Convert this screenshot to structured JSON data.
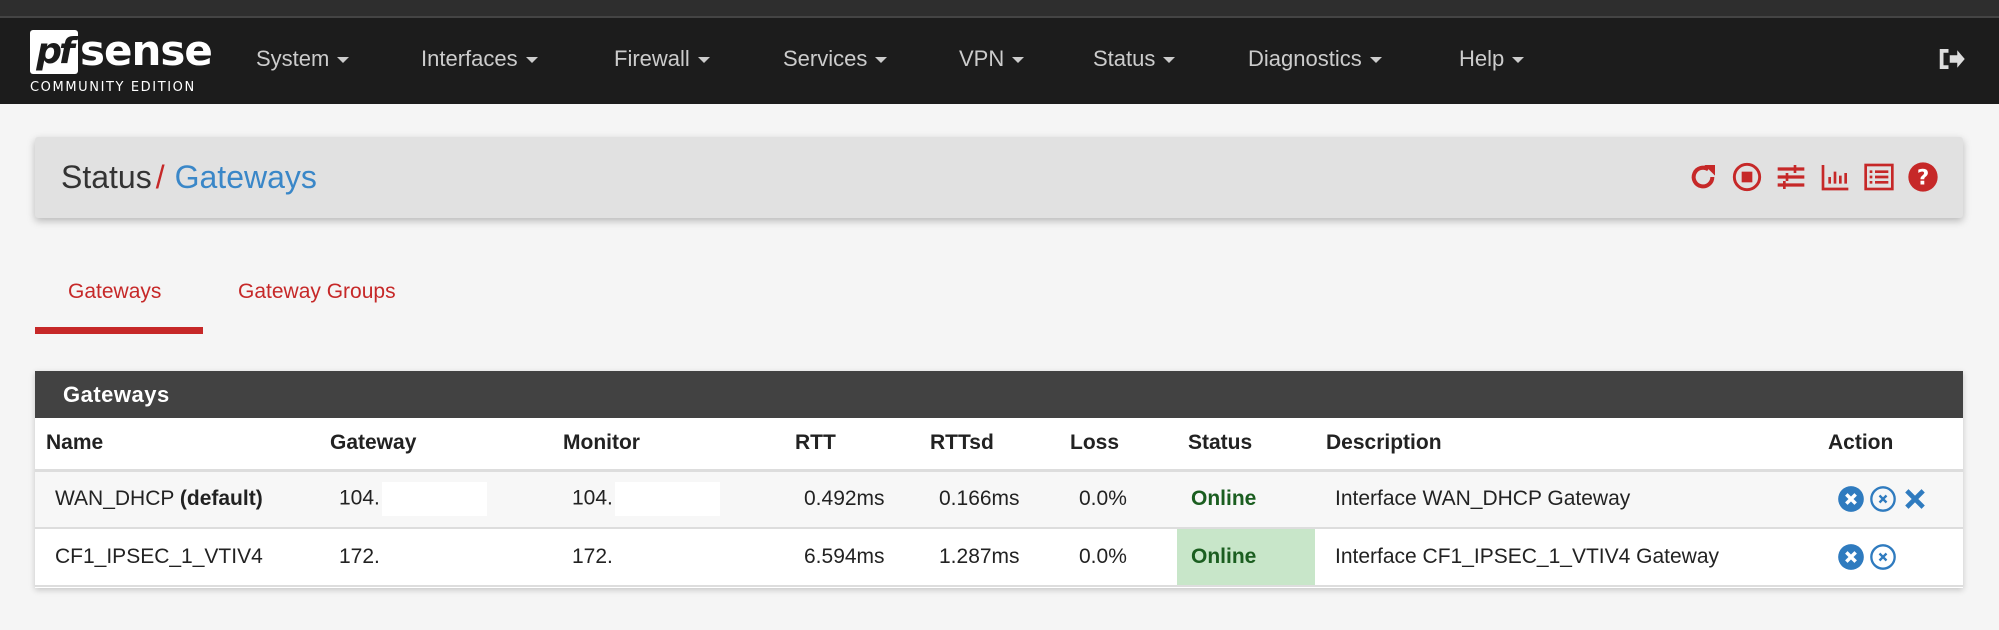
{
  "brand": {
    "logo_text": "pfsense",
    "edition": "COMMUNITY EDITION"
  },
  "nav": {
    "items": [
      "System",
      "Interfaces",
      "Firewall",
      "Services",
      "VPN",
      "Status",
      "Diagnostics",
      "Help"
    ],
    "logout_icon": "sign-out-icon"
  },
  "breadcrumb": {
    "parent": "Status",
    "separator": "/",
    "current": "Gateways"
  },
  "header_icons": [
    "reload-icon",
    "stop-circle-icon",
    "sliders-icon",
    "chart-icon",
    "list-icon",
    "help-icon"
  ],
  "tabs": [
    {
      "label": "Gateways",
      "active": true
    },
    {
      "label": "Gateway Groups",
      "active": false
    }
  ],
  "panel": {
    "title": "Gateways",
    "columns": [
      "Name",
      "Gateway",
      "Monitor",
      "RTT",
      "RTTsd",
      "Loss",
      "Status",
      "Description",
      "Action"
    ],
    "rows": [
      {
        "name": "WAN_DHCP",
        "name_suffix": "(default)",
        "gateway": "104.",
        "monitor": "104.",
        "rtt": "0.492ms",
        "rttsd": "0.166ms",
        "loss": "0.0%",
        "status": "Online",
        "description": "Interface WAN_DHCP Gateway",
        "actions": [
          "times-circle-icon",
          "times-circle-outline-icon",
          "times-icon"
        ]
      },
      {
        "name": "CF1_IPSEC_1_VTIV4",
        "name_suffix": "",
        "gateway": "172.",
        "monitor": "172.",
        "rtt": "6.594ms",
        "rttsd": "1.287ms",
        "loss": "0.0%",
        "status": "Online",
        "description": "Interface CF1_IPSEC_1_VTIV4 Gateway",
        "actions": [
          "times-circle-icon",
          "times-circle-outline-icon"
        ]
      }
    ]
  },
  "colors": {
    "accent": "#c62828",
    "link": "#3a87c8",
    "online_bg": "#c8e6c9",
    "online_text": "#1b5e20",
    "navbar": "#1c1c1c"
  }
}
